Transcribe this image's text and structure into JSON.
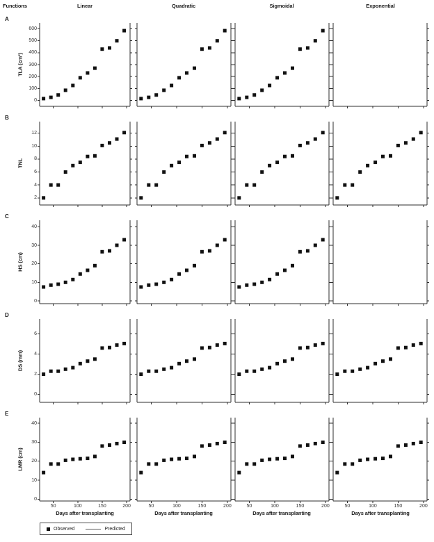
{
  "figure": {
    "corner_label": "Functions",
    "columns": [
      "Linear",
      "Quadratic",
      "Sigmoidal",
      "Exponential"
    ],
    "xlabel": "Days after transplanting",
    "legend": {
      "observed": "Observed",
      "predicted": "Predicted"
    },
    "colors": {
      "point": "#111111",
      "curve": "#5f5f5f",
      "axis": "#2e2e2e",
      "text": "#1b1b1b"
    }
  },
  "chart_data": {
    "type": "scatter",
    "title": "",
    "xlabel": "Days after transplanting",
    "x": [
      30,
      45,
      60,
      75,
      90,
      105,
      120,
      135,
      150,
      165,
      180,
      195
    ],
    "x_ticks": [
      50,
      100,
      150,
      200
    ],
    "xlim": [
      22,
      207
    ],
    "column_models": [
      "linear",
      "quadratic",
      "sigmoidal",
      "exponential"
    ],
    "legend_entries": [
      "Observed",
      "Predicted"
    ],
    "rows": [
      {
        "letter": "A",
        "ylabel": "TLA (cm²)",
        "y_ticks": [
          0,
          100,
          200,
          300,
          400,
          500,
          600
        ],
        "ylim": [
          -50,
          650
        ],
        "values": [
          15,
          25,
          45,
          85,
          125,
          190,
          230,
          270,
          430,
          440,
          500,
          585
        ],
        "empty_columns": [
          3
        ]
      },
      {
        "letter": "B",
        "ylabel": "TNL",
        "y_ticks": [
          2,
          4,
          6,
          8,
          10,
          12
        ],
        "ylim": [
          0.9,
          13.8
        ],
        "values": [
          2.0,
          4.0,
          4.0,
          6.0,
          7.0,
          7.5,
          8.4,
          8.5,
          10.1,
          10.5,
          11.1,
          12.1
        ],
        "empty_columns": []
      },
      {
        "letter": "C",
        "ylabel": "HS (cm)",
        "y_ticks": [
          0,
          10,
          20,
          30,
          40
        ],
        "ylim": [
          -1.5,
          43.5
        ],
        "values": [
          7.5,
          8.5,
          9.0,
          10.0,
          11.5,
          14.5,
          16.5,
          19.0,
          26.5,
          27.0,
          30.0,
          33.0
        ],
        "empty_columns": [
          3
        ]
      },
      {
        "letter": "D",
        "ylabel": "DS (mm)",
        "y_ticks": [
          0,
          2,
          4,
          6
        ],
        "ylim": [
          -0.8,
          7.5
        ],
        "values": [
          2.0,
          2.3,
          2.3,
          2.5,
          2.65,
          3.05,
          3.3,
          3.5,
          4.6,
          4.65,
          4.9,
          5.05
        ],
        "empty_columns": []
      },
      {
        "letter": "E",
        "ylabel": "LMR (cm)",
        "y_ticks": [
          0,
          10,
          20,
          30,
          40
        ],
        "ylim": [
          -1,
          43
        ],
        "values": [
          14.0,
          18.5,
          18.5,
          20.5,
          21.0,
          21.3,
          21.5,
          22.5,
          28.0,
          28.5,
          29.3,
          30.0
        ],
        "empty_columns": []
      }
    ]
  }
}
